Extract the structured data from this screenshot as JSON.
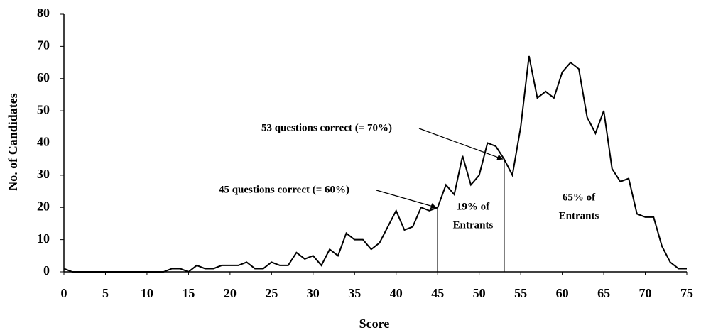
{
  "chart_data": {
    "type": "line",
    "x_label": "Score",
    "y_label": "No. of Candidates",
    "x": [
      0,
      1,
      2,
      3,
      4,
      5,
      6,
      7,
      8,
      9,
      10,
      11,
      12,
      13,
      14,
      15,
      16,
      17,
      18,
      19,
      20,
      21,
      22,
      23,
      24,
      25,
      26,
      27,
      28,
      29,
      30,
      31,
      32,
      33,
      34,
      35,
      36,
      37,
      38,
      39,
      40,
      41,
      42,
      43,
      44,
      45,
      46,
      47,
      48,
      49,
      50,
      51,
      52,
      53,
      54,
      55,
      56,
      57,
      58,
      59,
      60,
      61,
      62,
      63,
      64,
      65,
      66,
      67,
      68,
      69,
      70,
      71,
      72,
      73,
      74,
      75
    ],
    "series": [
      {
        "color": "#000000",
        "values": [
          1,
          0,
          0,
          0,
          0,
          0,
          0,
          0,
          0,
          0,
          0,
          0,
          0,
          1,
          1,
          0,
          2,
          1,
          1,
          2,
          2,
          2,
          3,
          1,
          1,
          3,
          2,
          2,
          6,
          4,
          5,
          2,
          7,
          5,
          12,
          10,
          10,
          7,
          9,
          14,
          19,
          13,
          14,
          20,
          19,
          20,
          27,
          24,
          36,
          27,
          30,
          40,
          39,
          35,
          30,
          45,
          67,
          54,
          56,
          54,
          62,
          65,
          63,
          48,
          43,
          50,
          32,
          28,
          29,
          18,
          17,
          17,
          8,
          3,
          1,
          1
        ]
      }
    ],
    "xlim": [
      0,
      75
    ],
    "ylim": [
      0,
      80
    ],
    "xticks": [
      0,
      5,
      10,
      15,
      20,
      25,
      30,
      35,
      40,
      45,
      50,
      55,
      60,
      65,
      70,
      75
    ],
    "yticks": [
      0,
      10,
      20,
      30,
      40,
      50,
      60,
      70,
      80
    ],
    "markers": [
      {
        "text": "45 questions correct (= 60%)",
        "x": 45
      },
      {
        "text": "53 questions correct (= 70%)",
        "x": 53
      }
    ],
    "regions": [
      {
        "lines": [
          "19% of",
          "Entrants"
        ]
      },
      {
        "lines": [
          "65% of",
          "Entrants"
        ]
      }
    ]
  }
}
